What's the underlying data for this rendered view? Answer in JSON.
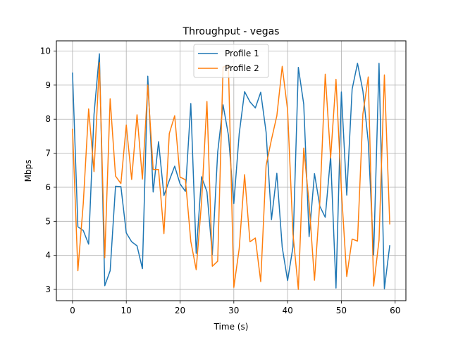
{
  "chart_data": {
    "type": "line",
    "title": "Throughput - vegas",
    "xlabel": "Time (s)",
    "ylabel": "Mbps",
    "xlim": [
      -3,
      62
    ],
    "ylim": [
      2.67,
      10.3
    ],
    "xticks": [
      0,
      10,
      20,
      30,
      40,
      50,
      60
    ],
    "yticks": [
      3,
      4,
      5,
      6,
      7,
      8,
      9,
      10
    ],
    "grid": true,
    "legend_position": "upper center",
    "series": [
      {
        "name": "Profile 1",
        "color": "#1f77b4",
        "x": [
          0,
          1,
          2,
          3,
          4,
          5,
          6,
          7,
          8,
          9,
          10,
          11,
          12,
          13,
          14,
          15,
          16,
          17,
          18,
          19,
          20,
          21,
          22,
          23,
          24,
          25,
          26,
          27,
          28,
          29,
          30,
          31,
          32,
          33,
          34,
          35,
          36,
          37,
          38,
          39,
          40,
          41,
          42,
          43,
          44,
          45,
          46,
          47,
          48,
          49,
          50,
          51,
          52,
          53,
          54,
          55,
          56,
          57,
          58,
          59
        ],
        "values": [
          9.37,
          4.84,
          4.73,
          4.33,
          8.14,
          9.92,
          3.11,
          3.55,
          6.03,
          6.02,
          4.66,
          4.4,
          4.28,
          3.61,
          9.26,
          5.86,
          7.34,
          5.76,
          6.2,
          6.62,
          6.1,
          5.88,
          8.46,
          4.06,
          6.31,
          5.87,
          4.02,
          7.03,
          8.42,
          7.53,
          5.52,
          7.57,
          8.81,
          8.51,
          8.33,
          8.79,
          7.62,
          5.05,
          6.41,
          4.24,
          3.26,
          4.25,
          9.52,
          8.44,
          4.55,
          6.4,
          5.44,
          5.12,
          6.91,
          3.04,
          8.8,
          5.77,
          8.88,
          9.64,
          8.83,
          7.34,
          4.01,
          9.64,
          3.02,
          4.3
        ]
      },
      {
        "name": "Profile 2",
        "color": "#ff7f0e",
        "x": [
          0,
          1,
          2,
          3,
          4,
          5,
          6,
          7,
          8,
          9,
          10,
          11,
          12,
          13,
          14,
          15,
          16,
          17,
          18,
          19,
          20,
          21,
          22,
          23,
          24,
          25,
          26,
          27,
          28,
          29,
          30,
          31,
          32,
          33,
          34,
          35,
          36,
          37,
          38,
          39,
          40,
          41,
          42,
          43,
          44,
          45,
          46,
          47,
          48,
          49,
          50,
          51,
          52,
          53,
          54,
          55,
          56,
          57,
          58,
          59
        ],
        "values": [
          7.72,
          3.55,
          5.52,
          8.3,
          6.46,
          9.66,
          3.93,
          8.6,
          6.33,
          6.11,
          7.83,
          6.23,
          8.13,
          6.24,
          9.0,
          6.52,
          6.52,
          4.64,
          7.58,
          8.1,
          6.3,
          6.22,
          4.41,
          3.58,
          5.57,
          8.52,
          3.68,
          3.83,
          9.53,
          9.56,
          3.06,
          4.2,
          6.37,
          4.4,
          4.51,
          3.23,
          6.64,
          7.4,
          8.1,
          9.55,
          8.27,
          4.63,
          3.0,
          7.15,
          5.53,
          3.27,
          5.58,
          9.32,
          6.86,
          9.17,
          5.92,
          3.38,
          4.48,
          4.42,
          8.15,
          9.24,
          3.1,
          4.44,
          9.3,
          4.91
        ]
      }
    ]
  }
}
